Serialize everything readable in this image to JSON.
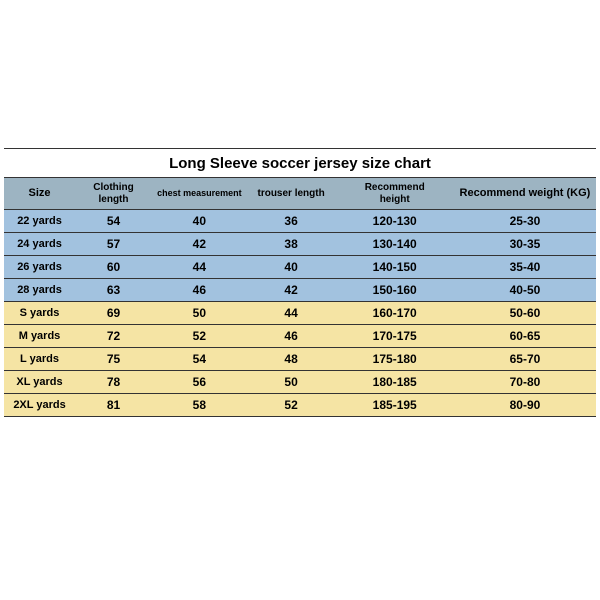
{
  "title": "Long Sleeve soccer jersey size chart",
  "colors": {
    "header_bg": "#9db4c2",
    "row_blue": "#a2c2df",
    "row_yellow": "#f5e4a4",
    "border": "#333333"
  },
  "columns": [
    {
      "key": "size",
      "label": "Size"
    },
    {
      "key": "clothing_length",
      "label": "Clothing length"
    },
    {
      "key": "chest",
      "label": "chest measurement"
    },
    {
      "key": "trouser",
      "label": "trouser length"
    },
    {
      "key": "height",
      "label": "Recommend height"
    },
    {
      "key": "weight",
      "label": "Recommend weight (KG)"
    }
  ],
  "rows": [
    {
      "band": "blue",
      "size": "22 yards",
      "clothing_length": "54",
      "chest": "40",
      "trouser": "36",
      "height": "120-130",
      "weight": "25-30"
    },
    {
      "band": "blue",
      "size": "24 yards",
      "clothing_length": "57",
      "chest": "42",
      "trouser": "38",
      "height": "130-140",
      "weight": "30-35"
    },
    {
      "band": "blue",
      "size": "26 yards",
      "clothing_length": "60",
      "chest": "44",
      "trouser": "40",
      "height": "140-150",
      "weight": "35-40"
    },
    {
      "band": "blue",
      "size": "28 yards",
      "clothing_length": "63",
      "chest": "46",
      "trouser": "42",
      "height": "150-160",
      "weight": "40-50"
    },
    {
      "band": "yellow",
      "size": "S yards",
      "clothing_length": "69",
      "chest": "50",
      "trouser": "44",
      "height": "160-170",
      "weight": "50-60"
    },
    {
      "band": "yellow",
      "size": "M yards",
      "clothing_length": "72",
      "chest": "52",
      "trouser": "46",
      "height": "170-175",
      "weight": "60-65"
    },
    {
      "band": "yellow",
      "size": "L yards",
      "clothing_length": "75",
      "chest": "54",
      "trouser": "48",
      "height": "175-180",
      "weight": "65-70"
    },
    {
      "band": "yellow",
      "size": "XL yards",
      "clothing_length": "78",
      "chest": "56",
      "trouser": "50",
      "height": "180-185",
      "weight": "70-80"
    },
    {
      "band": "yellow",
      "size": "2XL yards",
      "clothing_length": "81",
      "chest": "58",
      "trouser": "52",
      "height": "185-195",
      "weight": "80-90"
    }
  ]
}
